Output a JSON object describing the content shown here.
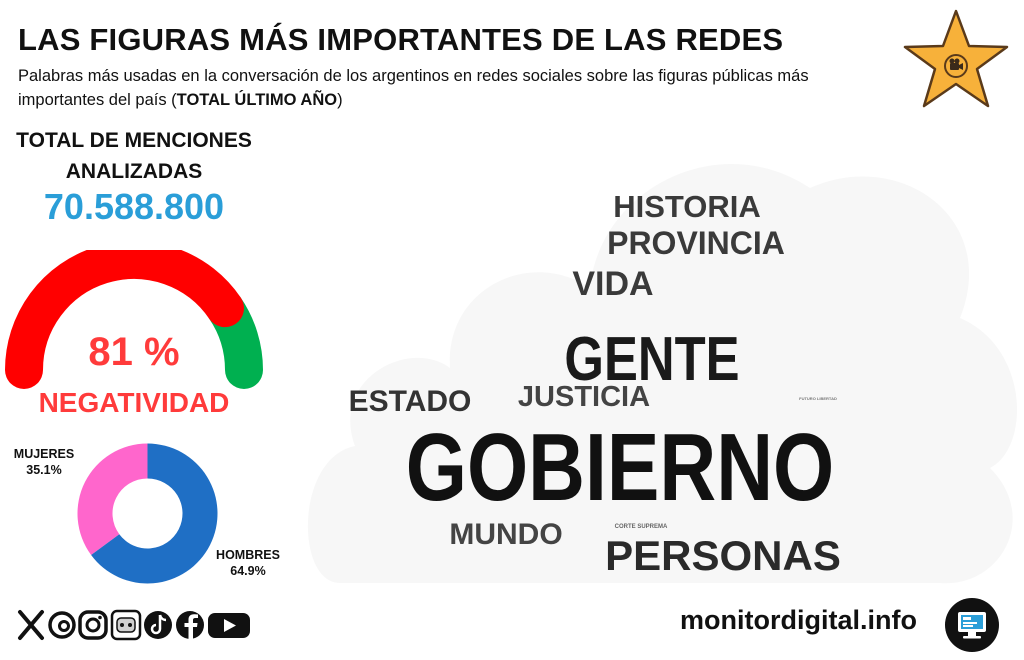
{
  "header": {
    "title": "LAS FIGURAS MÁS IMPORTANTES DE LAS REDES",
    "subtitle_main": "Palabras más usadas en la conversación de los argentinos en redes sociales sobre las figuras públicas más importantes del país (",
    "subtitle_bold": "TOTAL ÚLTIMO AÑO",
    "subtitle_end": ")"
  },
  "stats": {
    "mentions_label_line1": "TOTAL DE MENCIONES",
    "mentions_label_line2": "ANALIZADAS",
    "mentions_value": "70.588.800",
    "negativity_value": "81 %",
    "negativity_label": "NEGATIVIDAD"
  },
  "colors": {
    "negative": "#ff0000",
    "positive": "#00b050",
    "accent_blue": "#2a9ed8",
    "women": "#ff66cc",
    "men": "#1f6fc5",
    "star": "#f7b13a"
  },
  "chart_data": [
    {
      "type": "gauge",
      "title": "NEGATIVIDAD",
      "values": [
        81,
        19
      ],
      "unit": "%",
      "colors": [
        "#ff0000",
        "#00b050"
      ]
    },
    {
      "type": "pie",
      "style": "donut",
      "categories": [
        "MUJERES",
        "HOMBRES"
      ],
      "values": [
        35.1,
        64.9
      ],
      "value_labels": [
        "35.1%",
        "64.9%"
      ],
      "colors": [
        "#ff66cc",
        "#1f6fc5"
      ]
    },
    {
      "type": "wordcloud",
      "words": [
        {
          "text": "GOBIERNO",
          "weight": 100,
          "color": "#111111"
        },
        {
          "text": "GENTE",
          "weight": 62,
          "color": "#1a1a1a"
        },
        {
          "text": "PERSONAS",
          "weight": 42,
          "color": "#2a2a2a"
        },
        {
          "text": "PROVINCIA",
          "weight": 33,
          "color": "#3a3a3a"
        },
        {
          "text": "HISTORIA",
          "weight": 32,
          "color": "#3a3a3a"
        },
        {
          "text": "VIDA",
          "weight": 32,
          "color": "#3a3a3a"
        },
        {
          "text": "ESTADO",
          "weight": 31,
          "color": "#333333"
        },
        {
          "text": "MUNDO",
          "weight": 30,
          "color": "#444444"
        },
        {
          "text": "JUSTICIA",
          "weight": 29,
          "color": "#444444"
        },
        {
          "text": "CORTE SUPREMA",
          "weight": 2,
          "color": "#666666"
        },
        {
          "text": "FUTURO LIBERTAD",
          "weight": 1,
          "color": "#777777"
        }
      ]
    }
  ],
  "social": {
    "icons": [
      "x-icon",
      "threads-icon",
      "instagram-icon",
      "chatbot-icon",
      "tiktok-icon",
      "facebook-icon",
      "youtube-icon"
    ]
  },
  "footer": {
    "site": "monitordigital.info"
  }
}
